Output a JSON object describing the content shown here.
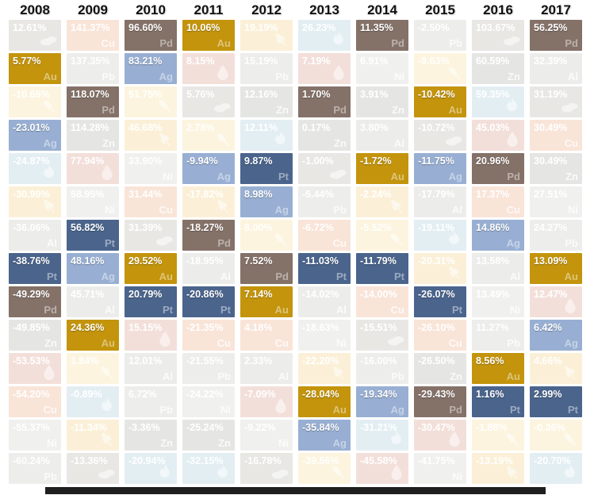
{
  "chart_data": {
    "type": "heatmap",
    "description": "Annual commodity returns by year, ranked best to worst; precious metals highlighted",
    "years": [
      "2008",
      "2009",
      "2010",
      "2011",
      "2012",
      "2013",
      "2014",
      "2015",
      "2016",
      "2017"
    ],
    "legend_position": "none",
    "grid": "off",
    "commodities": {
      "gold": {
        "symbol": "Au",
        "color": "#C3940C",
        "highlight": true
      },
      "silver": {
        "symbol": "Ag",
        "color": "#98AFD3",
        "highlight": true
      },
      "platinum": {
        "symbol": "Pt",
        "color": "#4A648C",
        "highlight": true
      },
      "palladium": {
        "symbol": "Pd",
        "color": "#847168",
        "highlight": true
      },
      "copper": {
        "symbol": "Cu",
        "color": "#F9E4D8",
        "highlight": false
      },
      "lead": {
        "symbol": "Pb",
        "color": "#EDEDEB",
        "highlight": false
      },
      "zinc": {
        "symbol": "Zn",
        "color": "#E5E6E4",
        "highlight": false
      },
      "nickel": {
        "symbol": "Ni",
        "color": "#F0F1EF",
        "highlight": false
      },
      "aluminum": {
        "symbol": "Al",
        "color": "#ECEDEB",
        "highlight": false
      },
      "coal": {
        "icon": "coal-lump",
        "color": "#E8E7E4",
        "highlight": false
      },
      "natural_gas": {
        "icon": "gas-flame",
        "color": "#E3EEF3",
        "highlight": false
      },
      "oil": {
        "icon": "oil-droplet",
        "color": "#F3DFDA",
        "highlight": false
      },
      "corn": {
        "icon": "corn-cob",
        "color": "#FCF4DE",
        "highlight": false
      },
      "wheat": {
        "icon": "wheat-stalk",
        "color": "#FBF0D7",
        "highlight": false
      }
    },
    "columns": [
      {
        "year": "2008",
        "cells": [
          {
            "value": "12.61%",
            "commodity": "coal"
          },
          {
            "value": "5.77%",
            "commodity": "gold"
          },
          {
            "value": "-10.65%",
            "commodity": "corn"
          },
          {
            "value": "-23.01%",
            "commodity": "silver"
          },
          {
            "value": "-24.87%",
            "commodity": "natural_gas"
          },
          {
            "value": "-30.99%",
            "commodity": "wheat"
          },
          {
            "value": "-36.06%",
            "commodity": "aluminum"
          },
          {
            "value": "-38.76%",
            "commodity": "platinum"
          },
          {
            "value": "-49.29%",
            "commodity": "palladium"
          },
          {
            "value": "-49.85%",
            "commodity": "zinc"
          },
          {
            "value": "-53.53%",
            "commodity": "oil"
          },
          {
            "value": "-54.20%",
            "commodity": "copper"
          },
          {
            "value": "-55.37%",
            "commodity": "nickel"
          },
          {
            "value": "-60.24%",
            "commodity": "lead"
          }
        ]
      },
      {
        "year": "2009",
        "cells": [
          {
            "value": "141.37%",
            "commodity": "copper"
          },
          {
            "value": "137.35%",
            "commodity": "lead"
          },
          {
            "value": "118.07%",
            "commodity": "palladium"
          },
          {
            "value": "114.28%",
            "commodity": "zinc"
          },
          {
            "value": "77.94%",
            "commodity": "oil"
          },
          {
            "value": "58.95%",
            "commodity": "nickel"
          },
          {
            "value": "56.82%",
            "commodity": "platinum"
          },
          {
            "value": "48.16%",
            "commodity": "silver"
          },
          {
            "value": "45.71%",
            "commodity": "aluminum"
          },
          {
            "value": "24.36%",
            "commodity": "gold"
          },
          {
            "value": "1.84%",
            "commodity": "corn"
          },
          {
            "value": "-0.89%",
            "commodity": "natural_gas"
          },
          {
            "value": "-11.34%",
            "commodity": "wheat"
          },
          {
            "value": "-13.36%",
            "commodity": "coal"
          }
        ]
      },
      {
        "year": "2010",
        "cells": [
          {
            "value": "96.60%",
            "commodity": "palladium"
          },
          {
            "value": "83.21%",
            "commodity": "silver"
          },
          {
            "value": "51.75%",
            "commodity": "corn"
          },
          {
            "value": "46.68%",
            "commodity": "wheat"
          },
          {
            "value": "33.90%",
            "commodity": "nickel"
          },
          {
            "value": "31.44%",
            "commodity": "copper"
          },
          {
            "value": "31.39%",
            "commodity": "coal"
          },
          {
            "value": "29.52%",
            "commodity": "gold"
          },
          {
            "value": "20.79%",
            "commodity": "platinum"
          },
          {
            "value": "15.15%",
            "commodity": "oil"
          },
          {
            "value": "12.01%",
            "commodity": "aluminum"
          },
          {
            "value": "6.72%",
            "commodity": "lead"
          },
          {
            "value": "-3.36%",
            "commodity": "zinc"
          },
          {
            "value": "-20.94%",
            "commodity": "natural_gas"
          }
        ]
      },
      {
        "year": "2011",
        "cells": [
          {
            "value": "10.06%",
            "commodity": "gold"
          },
          {
            "value": "8.15%",
            "commodity": "oil"
          },
          {
            "value": "5.76%",
            "commodity": "coal"
          },
          {
            "value": "2.78%",
            "commodity": "corn"
          },
          {
            "value": "-9.94%",
            "commodity": "silver"
          },
          {
            "value": "-17.82%",
            "commodity": "wheat"
          },
          {
            "value": "-18.27%",
            "commodity": "palladium"
          },
          {
            "value": "-18.95%",
            "commodity": "aluminum"
          },
          {
            "value": "-20.86%",
            "commodity": "platinum"
          },
          {
            "value": "-21.35%",
            "commodity": "copper"
          },
          {
            "value": "-21.55%",
            "commodity": "lead"
          },
          {
            "value": "-24.22%",
            "commodity": "nickel"
          },
          {
            "value": "-25.24%",
            "commodity": "zinc"
          },
          {
            "value": "-32.15%",
            "commodity": "natural_gas"
          }
        ]
      },
      {
        "year": "2012",
        "cells": [
          {
            "value": "19.19%",
            "commodity": "wheat"
          },
          {
            "value": "15.19%",
            "commodity": "lead"
          },
          {
            "value": "12.16%",
            "commodity": "zinc"
          },
          {
            "value": "12.11%",
            "commodity": "natural_gas"
          },
          {
            "value": "9.87%",
            "commodity": "platinum"
          },
          {
            "value": "8.98%",
            "commodity": "silver"
          },
          {
            "value": "8.00%",
            "commodity": "corn"
          },
          {
            "value": "7.52%",
            "commodity": "palladium"
          },
          {
            "value": "7.14%",
            "commodity": "gold"
          },
          {
            "value": "4.18%",
            "commodity": "copper"
          },
          {
            "value": "2.33%",
            "commodity": "aluminum"
          },
          {
            "value": "-7.09%",
            "commodity": "oil"
          },
          {
            "value": "-9.22%",
            "commodity": "nickel"
          },
          {
            "value": "-16.78%",
            "commodity": "coal"
          }
        ]
      },
      {
        "year": "2013",
        "cells": [
          {
            "value": "26.23%",
            "commodity": "natural_gas"
          },
          {
            "value": "7.19%",
            "commodity": "oil"
          },
          {
            "value": "1.70%",
            "commodity": "palladium"
          },
          {
            "value": "0.17%",
            "commodity": "zinc"
          },
          {
            "value": "-1.00%",
            "commodity": "coal"
          },
          {
            "value": "-5.44%",
            "commodity": "lead"
          },
          {
            "value": "-6.72%",
            "commodity": "copper"
          },
          {
            "value": "-11.03%",
            "commodity": "platinum"
          },
          {
            "value": "-14.02%",
            "commodity": "aluminum"
          },
          {
            "value": "-18.63%",
            "commodity": "nickel"
          },
          {
            "value": "-22.20%",
            "commodity": "wheat"
          },
          {
            "value": "-28.04%",
            "commodity": "gold"
          },
          {
            "value": "-35.84%",
            "commodity": "silver"
          },
          {
            "value": "-39.56%",
            "commodity": "corn"
          }
        ]
      },
      {
        "year": "2014",
        "cells": [
          {
            "value": "11.35%",
            "commodity": "palladium"
          },
          {
            "value": "6.91%",
            "commodity": "nickel"
          },
          {
            "value": "3.91%",
            "commodity": "zinc"
          },
          {
            "value": "3.80%",
            "commodity": "aluminum"
          },
          {
            "value": "-1.72%",
            "commodity": "gold"
          },
          {
            "value": "-2.24%",
            "commodity": "wheat"
          },
          {
            "value": "-5.52%",
            "commodity": "corn"
          },
          {
            "value": "-11.79%",
            "commodity": "platinum"
          },
          {
            "value": "-14.00%",
            "commodity": "copper"
          },
          {
            "value": "-15.51%",
            "commodity": "coal"
          },
          {
            "value": "-16.00%",
            "commodity": "lead"
          },
          {
            "value": "-19.34%",
            "commodity": "silver"
          },
          {
            "value": "-31.21%",
            "commodity": "natural_gas"
          },
          {
            "value": "-45.58%",
            "commodity": "oil"
          }
        ]
      },
      {
        "year": "2015",
        "cells": [
          {
            "value": "-2.50%",
            "commodity": "lead"
          },
          {
            "value": "-9.63%",
            "commodity": "corn"
          },
          {
            "value": "-10.42%",
            "commodity": "gold"
          },
          {
            "value": "-10.72%",
            "commodity": "coal"
          },
          {
            "value": "-11.75%",
            "commodity": "silver"
          },
          {
            "value": "-17.79%",
            "commodity": "aluminum"
          },
          {
            "value": "-19.11%",
            "commodity": "natural_gas"
          },
          {
            "value": "-20.31%",
            "commodity": "wheat"
          },
          {
            "value": "-26.07%",
            "commodity": "platinum"
          },
          {
            "value": "-26.10%",
            "commodity": "copper"
          },
          {
            "value": "-26.50%",
            "commodity": "zinc"
          },
          {
            "value": "-29.43%",
            "commodity": "palladium"
          },
          {
            "value": "-30.47%",
            "commodity": "oil"
          },
          {
            "value": "-41.75%",
            "commodity": "nickel"
          }
        ]
      },
      {
        "year": "2016",
        "cells": [
          {
            "value": "103.67%",
            "commodity": "coal"
          },
          {
            "value": "60.59%",
            "commodity": "zinc"
          },
          {
            "value": "59.35%",
            "commodity": "natural_gas"
          },
          {
            "value": "45.03%",
            "commodity": "oil"
          },
          {
            "value": "20.96%",
            "commodity": "palladium"
          },
          {
            "value": "17.37%",
            "commodity": "copper"
          },
          {
            "value": "14.86%",
            "commodity": "silver"
          },
          {
            "value": "13.58%",
            "commodity": "aluminum"
          },
          {
            "value": "13.49%",
            "commodity": "nickel"
          },
          {
            "value": "11.27%",
            "commodity": "lead"
          },
          {
            "value": "8.56%",
            "commodity": "gold"
          },
          {
            "value": "1.16%",
            "commodity": "platinum"
          },
          {
            "value": "-1.88%",
            "commodity": "corn"
          },
          {
            "value": "-13.19%",
            "commodity": "wheat"
          }
        ]
      },
      {
        "year": "2017",
        "cells": [
          {
            "value": "56.25%",
            "commodity": "palladium"
          },
          {
            "value": "32.39%",
            "commodity": "aluminum"
          },
          {
            "value": "31.19%",
            "commodity": "coal"
          },
          {
            "value": "30.49%",
            "commodity": "copper"
          },
          {
            "value": "30.49%",
            "commodity": "zinc"
          },
          {
            "value": "27.51%",
            "commodity": "nickel"
          },
          {
            "value": "24.27%",
            "commodity": "lead"
          },
          {
            "value": "13.09%",
            "commodity": "gold"
          },
          {
            "value": "12.47%",
            "commodity": "oil"
          },
          {
            "value": "6.42%",
            "commodity": "silver"
          },
          {
            "value": "4.66%",
            "commodity": "wheat"
          },
          {
            "value": "2.99%",
            "commodity": "platinum"
          },
          {
            "value": "-0.36%",
            "commodity": "corn"
          },
          {
            "value": "-20.70%",
            "commodity": "natural_gas"
          }
        ]
      }
    ]
  }
}
